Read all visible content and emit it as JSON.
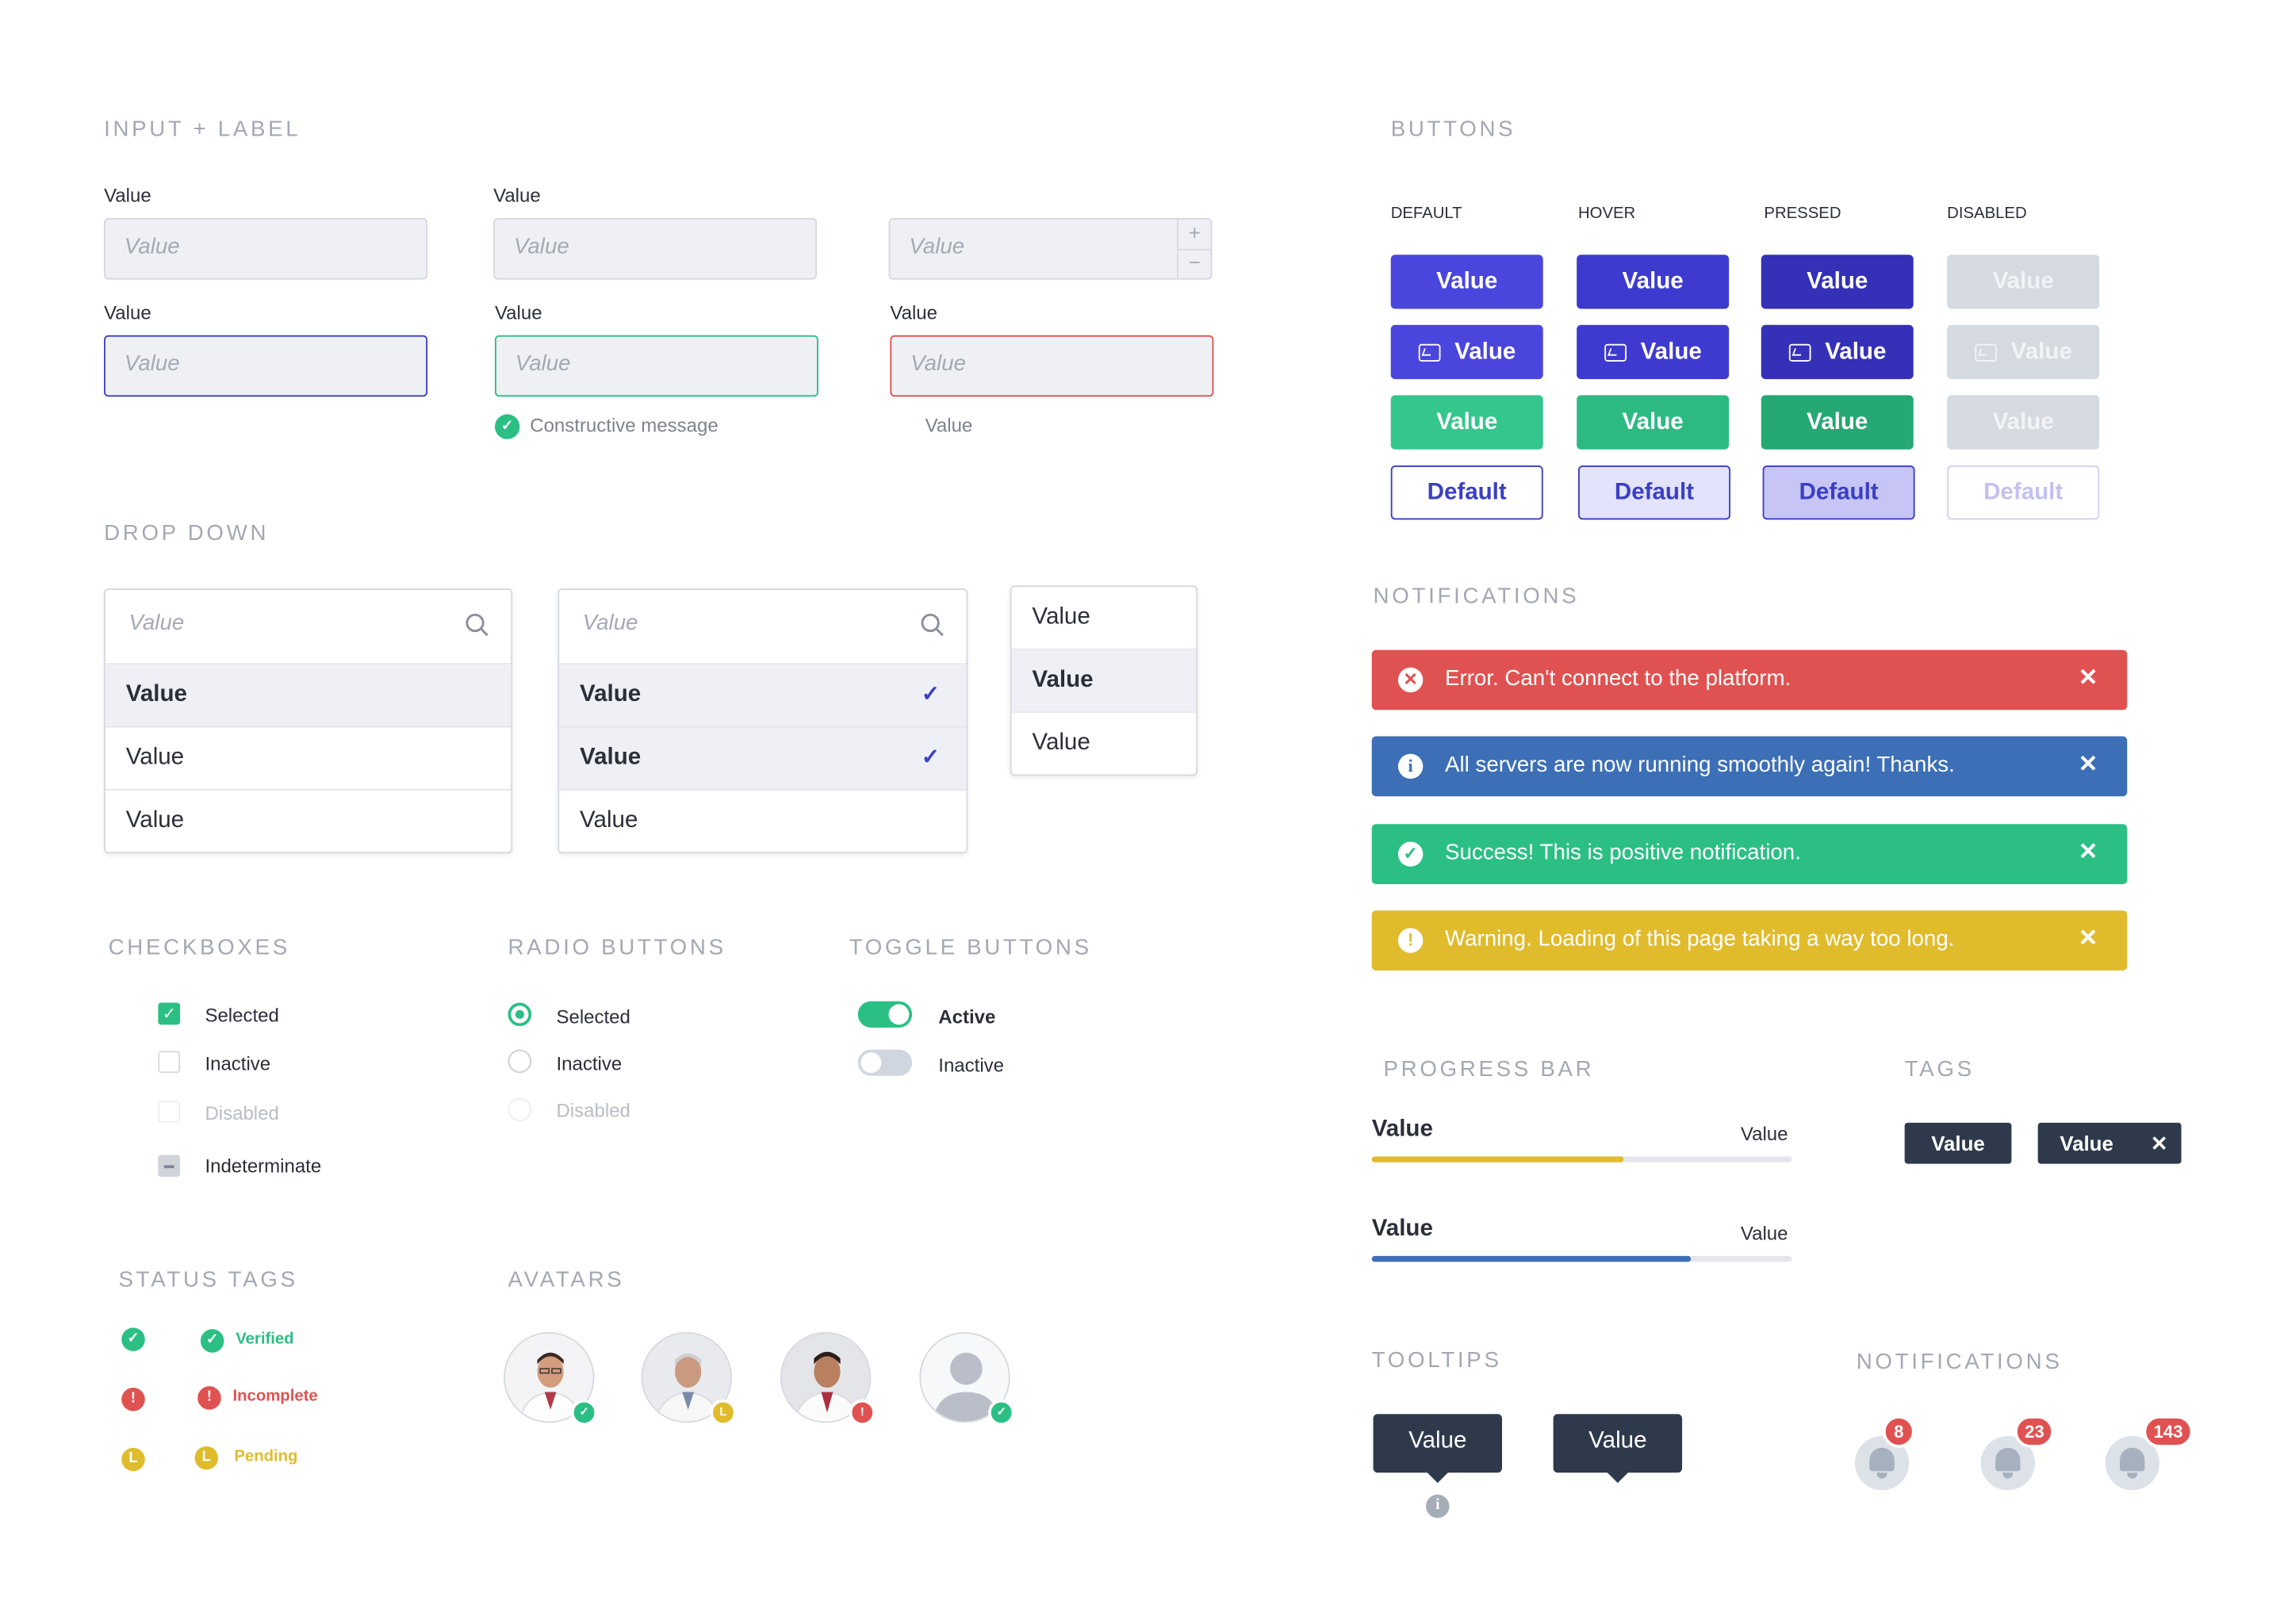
{
  "colors": {
    "primary": "#3b3fc4",
    "success": "#2bbf84",
    "error": "#e05252",
    "info": "#3c6fb6",
    "warning": "#e0bc2c",
    "dark": "#2e3a4c",
    "disabled": "#d5d9e0"
  },
  "sections": {
    "input_label": "INPUT + LABEL",
    "drop_down": "DROP DOWN",
    "checkboxes": "CHECKBOXES",
    "radio_buttons": "RADIO BUTTONS",
    "toggle_buttons": "TOGGLE BUTTONS",
    "status_tags": "STATUS TAGS",
    "avatars": "AVATARS",
    "buttons": "BUTTONS",
    "notifications": "NOTIFICATIONS",
    "progress_bar": "PROGRESS BAR",
    "tags": "TAGS",
    "tooltips": "TOOLTIPS",
    "notifications_badges": "NOTIFICATIONS"
  },
  "inputs": {
    "label": "Value",
    "placeholder": "Value",
    "constructive_message": "Constructive message",
    "error_message": "Value",
    "stepper_plus": "+",
    "stepper_minus": "−"
  },
  "dropdowns": {
    "search_placeholder": "Value",
    "list1": [
      "Value",
      "Value",
      "Value"
    ],
    "list2": [
      "Value",
      "Value",
      "Value"
    ],
    "list3": [
      "Value",
      "Value",
      "Value"
    ]
  },
  "buttons": {
    "columns": [
      "DEFAULT",
      "HOVER",
      "PRESSED",
      "DISABLED"
    ],
    "label": "Value",
    "outline_label": "Default",
    "icon": "image-icon"
  },
  "notifications": [
    {
      "type": "error",
      "icon": "x-circle-icon",
      "glyph": "✕",
      "text": "Error. Can't connect to the platform.",
      "close": "✕"
    },
    {
      "type": "info",
      "icon": "info-icon",
      "glyph": "i",
      "text": "All servers are now running smoothly again! Thanks.",
      "close": "✕"
    },
    {
      "type": "success",
      "icon": "check-circle-icon",
      "glyph": "✓",
      "text": "Success! This is positive notification.",
      "close": "✕"
    },
    {
      "type": "warning",
      "icon": "warning-icon",
      "glyph": "!",
      "text": "Warning. Loading of this page taking a way too long.",
      "close": "✕"
    }
  ],
  "checkboxes": {
    "selected": "Selected",
    "inactive": "Inactive",
    "disabled": "Disabled",
    "indeterminate": "Indeterminate",
    "check_glyph": "✓"
  },
  "radios": {
    "selected": "Selected",
    "inactive": "Inactive",
    "disabled": "Disabled"
  },
  "toggles": {
    "active": "Active",
    "inactive": "Inactive"
  },
  "status_tags": {
    "verified": "Verified",
    "incomplete": "Incomplete",
    "pending": "Pending",
    "check_glyph": "✓",
    "alert_glyph": "!",
    "clock_glyph": "L"
  },
  "avatar_badges": [
    "✓",
    "L",
    "!",
    "✓"
  ],
  "progress": [
    {
      "label": "Value",
      "value_label": "Value",
      "fraction": 0.6,
      "color": "#e0bc2c"
    },
    {
      "label": "Value",
      "value_label": "Value",
      "fraction": 0.76,
      "color": "#3c6fb6"
    }
  ],
  "tags": {
    "tag1": "Value",
    "tag2": "Value",
    "close": "✕"
  },
  "tooltips": {
    "t1": "Value",
    "t2": "Value",
    "info_glyph": "i"
  },
  "badges": [
    "8",
    "23",
    "143"
  ]
}
